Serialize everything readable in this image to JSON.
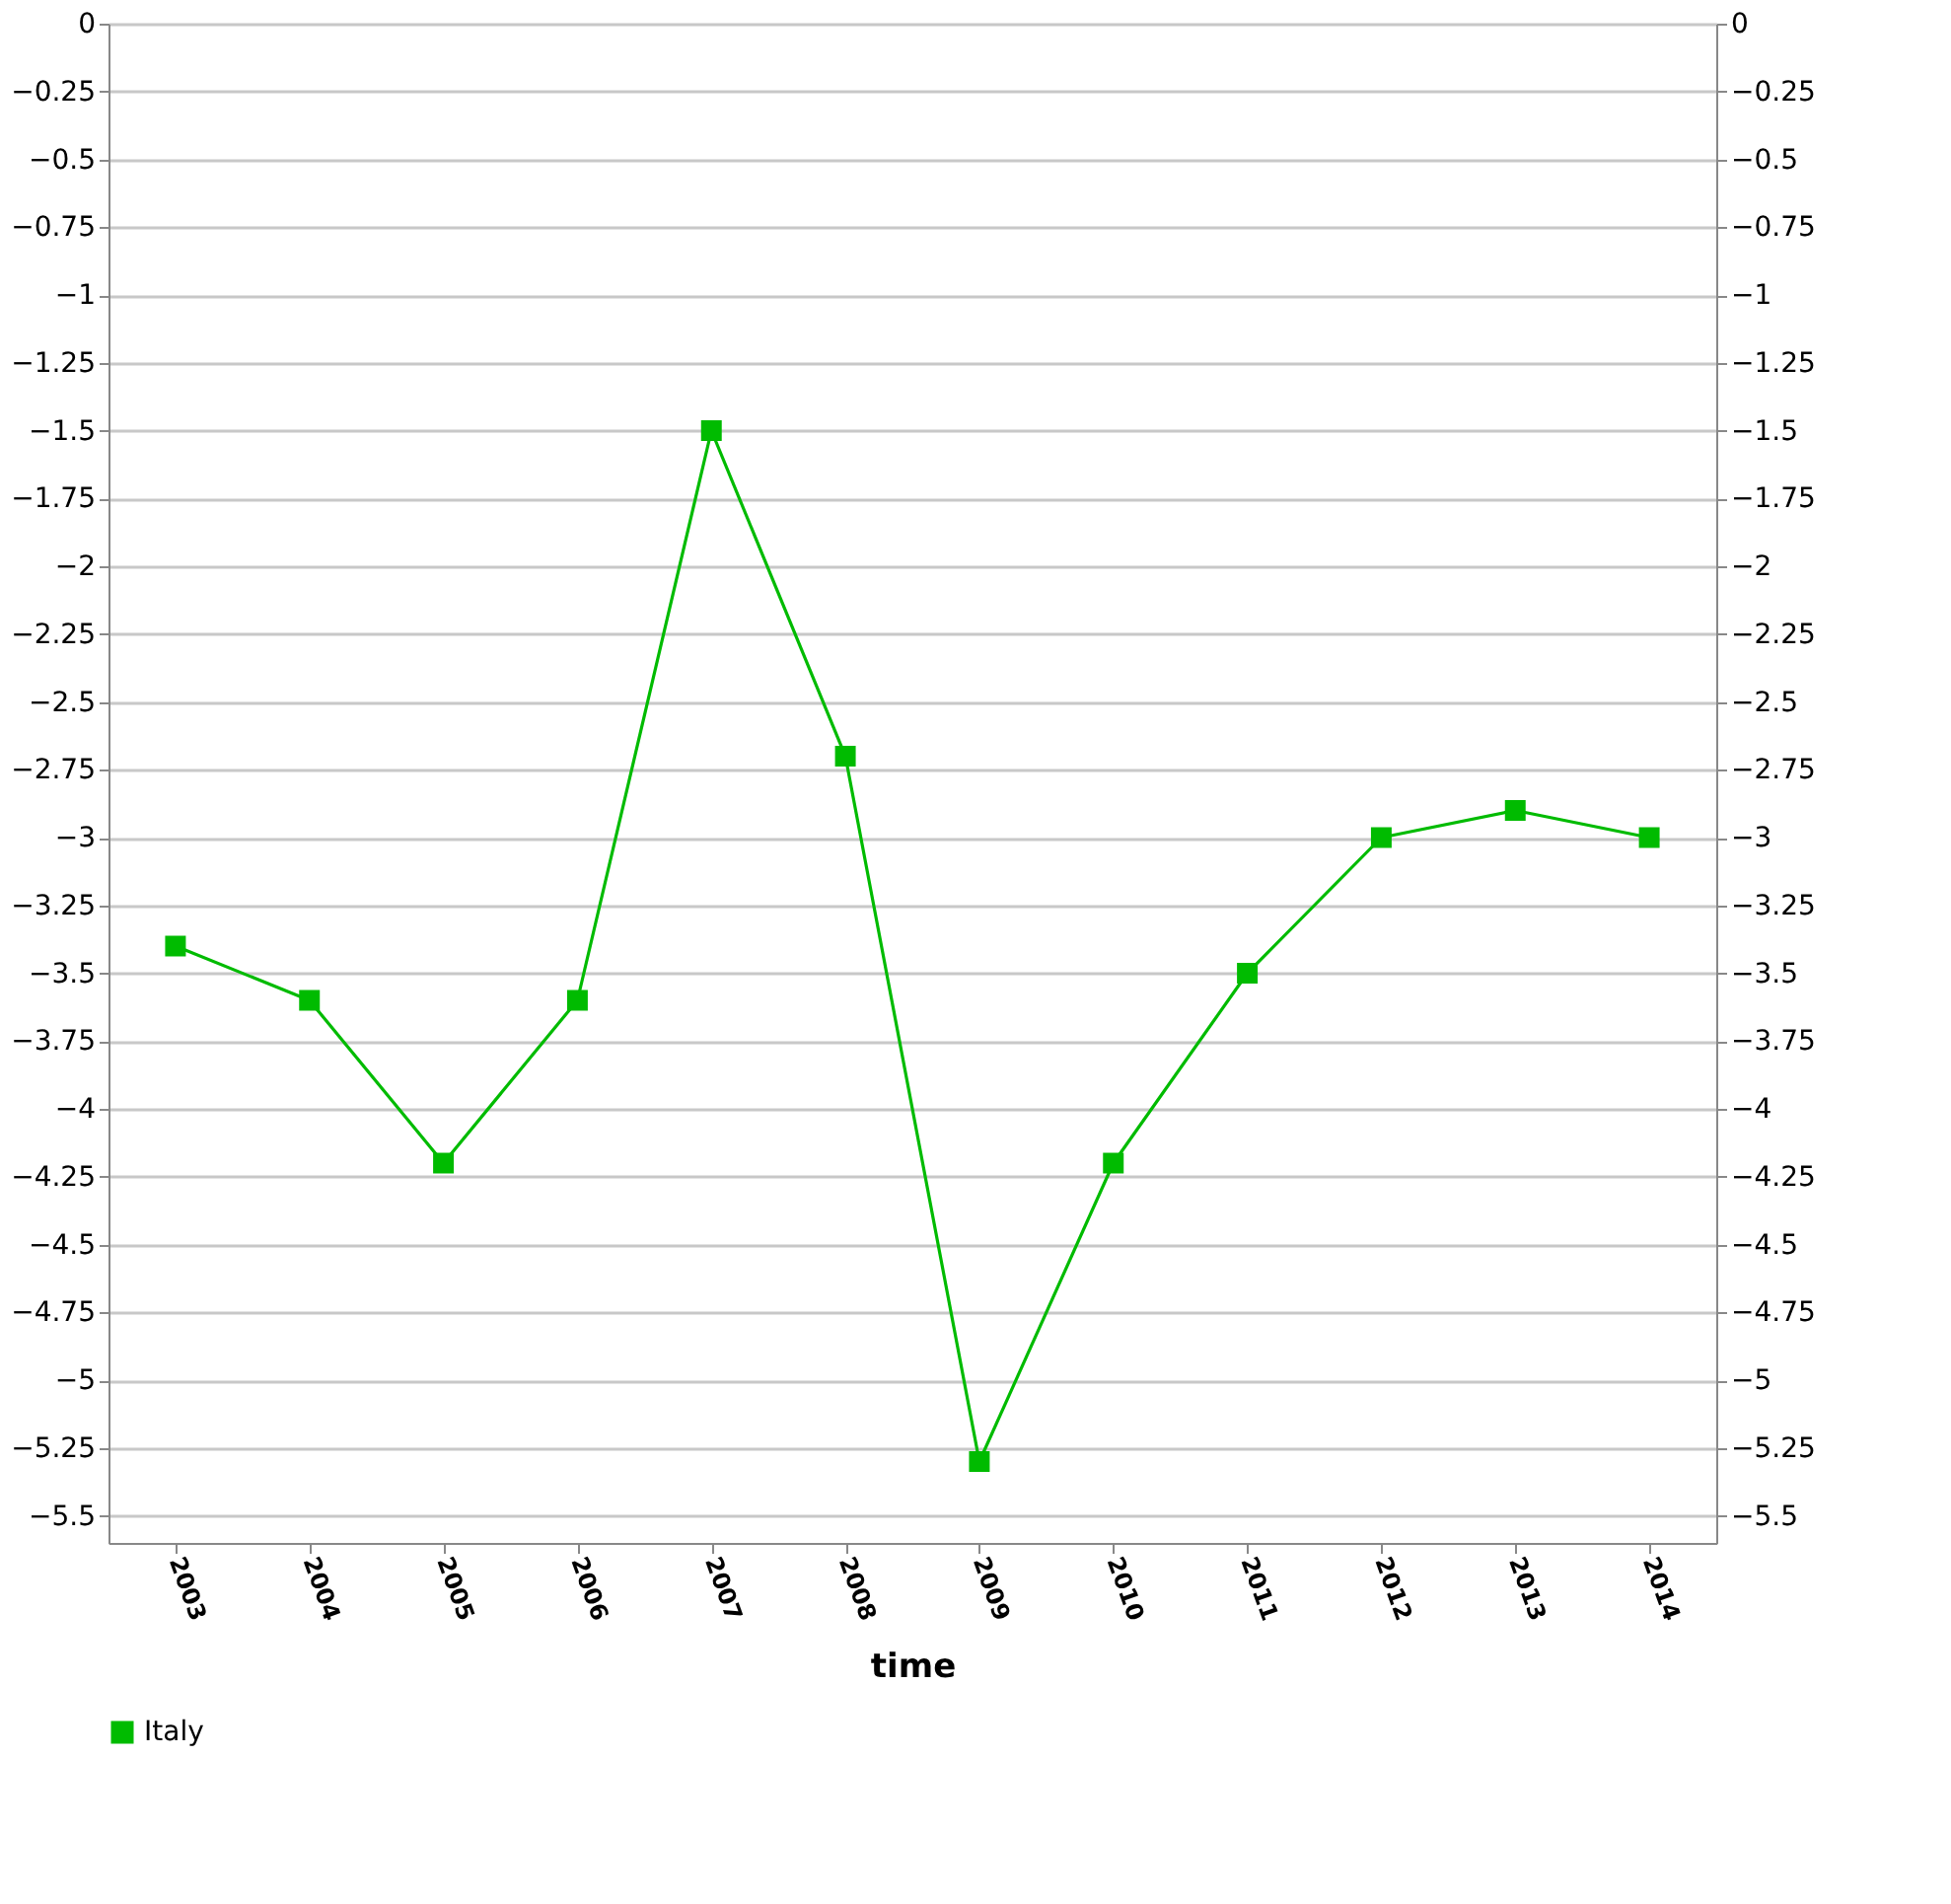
{
  "chart_data": {
    "type": "line",
    "xlabel": "time",
    "categories": [
      "2003",
      "2004",
      "2005",
      "2006",
      "2007",
      "2008",
      "2009",
      "2010",
      "2011",
      "2012",
      "2013",
      "2014"
    ],
    "series": [
      {
        "name": "Italy",
        "color": "#00bb00",
        "values": [
          -3.4,
          -3.6,
          -4.2,
          -3.6,
          -1.5,
          -2.7,
          -5.3,
          -4.2,
          -3.5,
          -3.0,
          -2.9,
          -3.0
        ]
      }
    ],
    "ylim": [
      -5.6,
      0
    ],
    "yticks": [
      0,
      -0.25,
      -0.5,
      -0.75,
      -1,
      -1.25,
      -1.5,
      -1.75,
      -2,
      -2.25,
      -2.5,
      -2.75,
      -3,
      -3.25,
      -3.5,
      -3.75,
      -4,
      -4.25,
      -4.5,
      -4.75,
      -5,
      -5.25,
      -5.5
    ],
    "y2lim": [
      -5.6,
      0
    ],
    "y2ticks": [
      0,
      -0.25,
      -0.5,
      -0.75,
      -1,
      -1.25,
      -1.5,
      -1.75,
      -2,
      -2.25,
      -2.5,
      -2.75,
      -3,
      -3.25,
      -3.5,
      -3.75,
      -4,
      -4.25,
      -4.5,
      -4.75,
      -5,
      -5.25,
      -5.5
    ],
    "grid": "y",
    "legend": "bottom",
    "marker": "square",
    "line_style": "solid"
  }
}
